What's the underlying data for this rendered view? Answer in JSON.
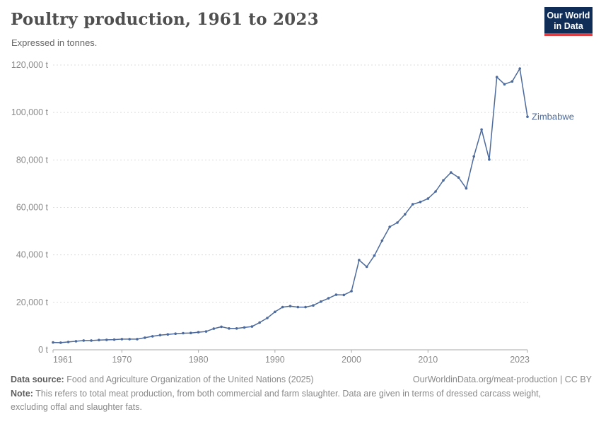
{
  "header": {
    "title": "Poultry production, 1961 to 2023",
    "subtitle": "Expressed in tonnes.",
    "logo": {
      "line1": "Our World",
      "line2": "in Data",
      "bg_color": "#0f2d56",
      "bar_color": "#dc3e42"
    }
  },
  "chart_data": {
    "type": "line",
    "title": "Poultry production, 1961 to 2023",
    "xlabel": "",
    "ylabel": "tonnes",
    "xlim": [
      1961,
      2023
    ],
    "ylim": [
      0,
      120000
    ],
    "xticks": [
      1961,
      1970,
      1980,
      1990,
      2000,
      2010,
      2023
    ],
    "yticks": [
      0,
      20000,
      40000,
      60000,
      80000,
      100000,
      120000
    ],
    "ytick_labels": [
      "0 t",
      "20,000 t",
      "40,000 t",
      "60,000 t",
      "80,000 t",
      "100,000 t",
      "120,000 t"
    ],
    "grid": "horizontal-dashed",
    "legend": "end-of-line-label",
    "x_start": 1961,
    "series": [
      {
        "name": "Zimbabwe",
        "color": "#4C6A9C",
        "values": [
          3100,
          3000,
          3300,
          3600,
          3900,
          3900,
          4100,
          4200,
          4300,
          4500,
          4500,
          4500,
          5100,
          5700,
          6200,
          6500,
          6800,
          7000,
          7100,
          7400,
          7700,
          8900,
          9700,
          9000,
          9000,
          9400,
          9800,
          11500,
          13400,
          16000,
          18000,
          18400,
          18000,
          18000,
          18700,
          20300,
          21700,
          23200,
          23100,
          24700,
          37800,
          35000,
          39700,
          46000,
          51800,
          53600,
          57100,
          61300,
          62300,
          63700,
          66700,
          71400,
          74700,
          72600,
          68000,
          81500,
          92800,
          80200,
          114900,
          111900,
          113100,
          118500,
          98200
        ]
      }
    ]
  },
  "footer": {
    "data_source_label": "Data source:",
    "data_source_text": " Food and Agriculture Organization of the United Nations (2025)",
    "link": "OurWorldinData.org/meat-production | CC BY",
    "note_label": "Note:",
    "note_text": " This refers to total meat production, from both commercial and farm slaughter. Data are given in terms of dressed carcass weight, excluding offal and slaughter fats."
  }
}
